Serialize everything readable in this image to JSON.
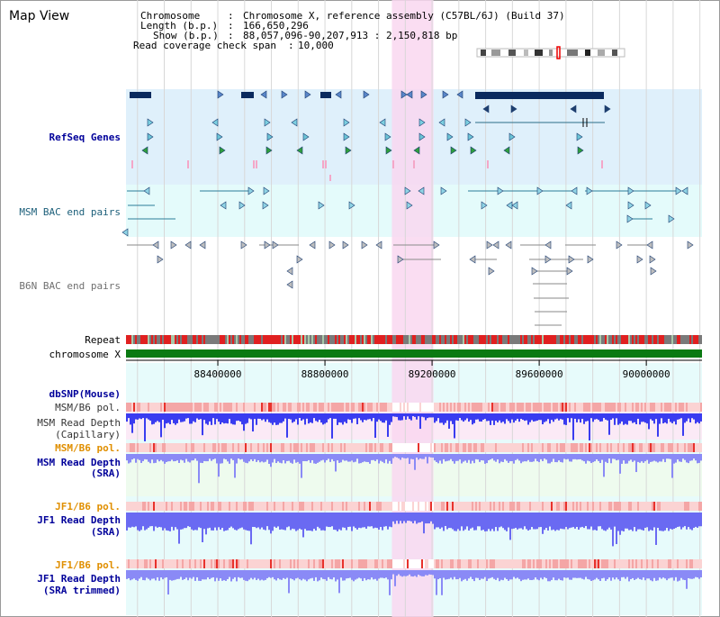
{
  "title": "Map View",
  "info": {
    "chromosome_key": "Chromosome",
    "chromosome_val": "Chromosome X, reference assembly (C57BL/6J) (Build 37)",
    "length_key": "Length (b.p.)",
    "length_val": "166,650,296",
    "show_key": "Show (b.p.)",
    "show_val": "88,057,096-90,207,913 : 2,150,818 bp",
    "coverage_key": "Read coverage check span",
    "coverage_val": "10,000"
  },
  "tracks": {
    "refseq": "RefSeq Genes",
    "msm_bac": "MSM BAC end pairs",
    "b6n_bac": "B6N BAC end pairs",
    "repeat": "Repeat",
    "chromosome": "chromosome X",
    "dbsnp": "dbSNP(Mouse)",
    "msm_pol_1": "MSM/B6 pol.",
    "msm_depth_cap_1": "MSM Read Depth",
    "msm_depth_cap_2": "(Capillary)",
    "msm_pol_2": "MSM/B6 pol.",
    "msm_depth_sra_1": "MSM Read Depth",
    "msm_depth_sra_2": "(SRA)",
    "jf1_pol_1": "JF1/B6 pol.",
    "jf1_depth_1": "JF1 Read Depth",
    "jf1_depth_2": "(SRA)",
    "jf1_pol_2": "JF1/B6 pol.",
    "jf1_trim_1": "JF1 Read Depth",
    "jf1_trim_2": "(SRA trimmed)"
  },
  "axis": {
    "ticks": [
      {
        "label": "88400000",
        "value": 88400000
      },
      {
        "label": "88800000",
        "value": 88800000
      },
      {
        "label": "89200000",
        "value": 89200000
      },
      {
        "label": "89600000",
        "value": 89600000
      },
      {
        "label": "90000000",
        "value": 90000000
      }
    ],
    "start": 88057096,
    "end": 90207913
  },
  "highlight": {
    "start": 89050000,
    "end": 89205000
  },
  "colors": {
    "refseq_bg": "#dff0fb",
    "msm_bac_bg": "#e4fbfb",
    "gene_dark": "#0a2a5e",
    "bac_teal": "#2b7d99",
    "bac_gray": "#8a8a8a",
    "highlight": "#f9d7f0",
    "chromosome_green": "#0a7a12",
    "depth_blue": "#3a3cf0",
    "pol_red": "#e8322c"
  }
}
